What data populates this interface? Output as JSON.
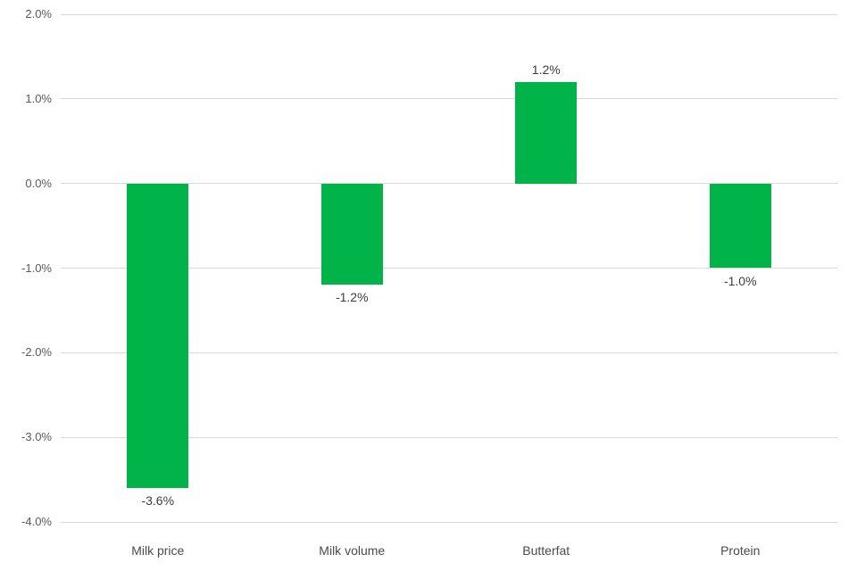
{
  "chart_data": {
    "type": "bar",
    "title": "",
    "xlabel": "",
    "ylabel": "",
    "categories": [
      "Milk price",
      "Milk volume",
      "Butterfat",
      "Protein"
    ],
    "values": [
      -3.6,
      -1.2,
      1.2,
      -1.0
    ],
    "data_labels": [
      "-3.6%",
      "-1.2%",
      "1.2%",
      "-1.0%"
    ],
    "y_ticks": [
      2.0,
      1.0,
      0.0,
      -1.0,
      -2.0,
      -3.0,
      -4.0
    ],
    "y_tick_labels": [
      "2.0%",
      "1.0%",
      "0.0%",
      "-1.0%",
      "-2.0%",
      "-3.0%",
      "-4.0%"
    ],
    "ylim": [
      -4.0,
      2.0
    ],
    "grid": true,
    "legend": false,
    "colors": {
      "bar": "#00B44A",
      "gridline": "#D9D9D9",
      "tick_label": "#595959",
      "data_label": "#3D3D3D",
      "category_label": "#4A4A4A",
      "background": "#FFFFFF"
    }
  }
}
